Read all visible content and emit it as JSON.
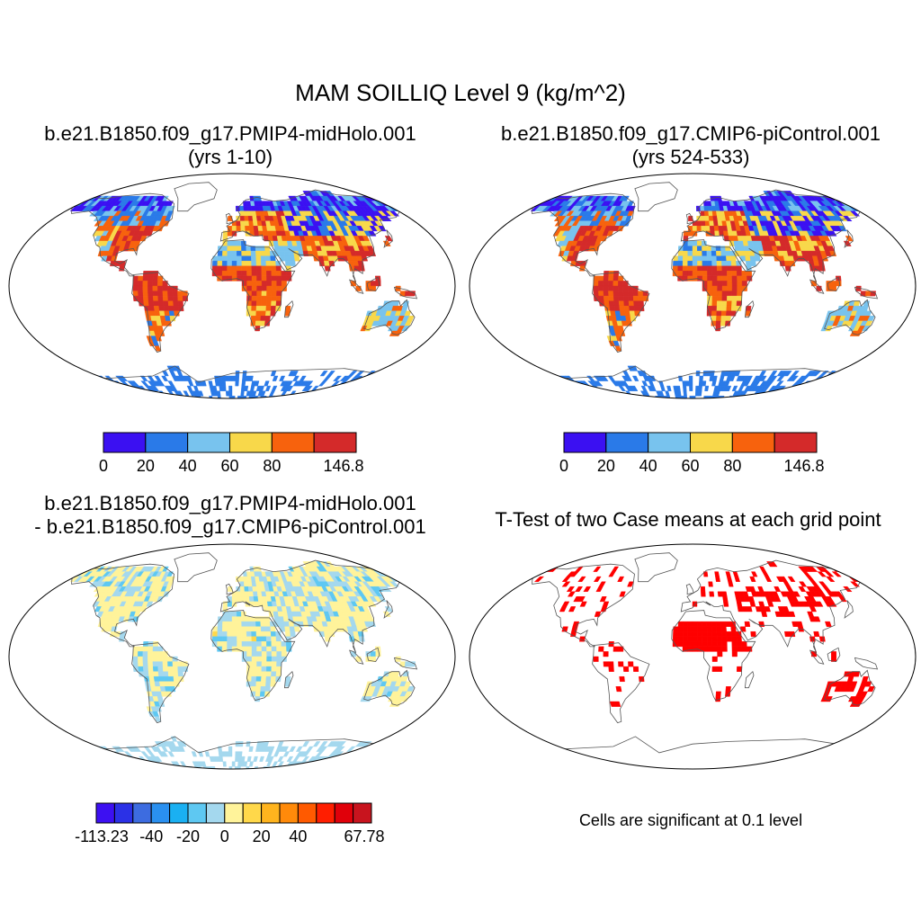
{
  "main_title": "MAM SOILLIQ Level 9 (kg/m^2)",
  "panels": [
    {
      "name": "case-map",
      "title_line1": "b.e21.B1850.f09_g17.PMIP4-midHolo.001",
      "title_line2": "(yrs 1-10)",
      "field": "soil-liquid"
    },
    {
      "name": "control-map",
      "title_line1": "b.e21.B1850.f09_g17.CMIP6-piControl.001",
      "title_line2": "(yrs 524-533)",
      "field": "soil-liquid"
    },
    {
      "name": "difference-map",
      "title_line1": "b.e21.B1850.f09_g17.PMIP4-midHolo.001",
      "title_line2": "- b.e21.B1850.f09_g17.CMIP6-piControl.001",
      "field": "difference"
    },
    {
      "name": "ttest-map",
      "title_line1": "T-Test of two Case means at each grid point",
      "field": "significance"
    }
  ],
  "colorbar_abs": {
    "colors": [
      "#3b10f2",
      "#2a7ae8",
      "#78c3ee",
      "#f8d84a",
      "#f7620d",
      "#d42a2a"
    ],
    "labels": [
      "0",
      "20",
      "40",
      "60",
      "80",
      "146.8"
    ]
  },
  "colorbar_diff": {
    "colors": [
      "#3d10f2",
      "#2b31e6",
      "#3d6ce0",
      "#2a90f0",
      "#1ab0f2",
      "#5ec8f2",
      "#a4d8ee",
      "#fff39a",
      "#ffd84a",
      "#ffb41e",
      "#ff8a0a",
      "#ff5a00",
      "#ff1e00",
      "#e0000a",
      "#c8141e"
    ],
    "labels": [
      "-113.23",
      "-40",
      "-20",
      "0",
      "20",
      "40",
      "67.78"
    ]
  },
  "significance_note": "Cells are significant at 0.1 level",
  "significance_color": "#ff0000",
  "coast_color": "#555555"
}
